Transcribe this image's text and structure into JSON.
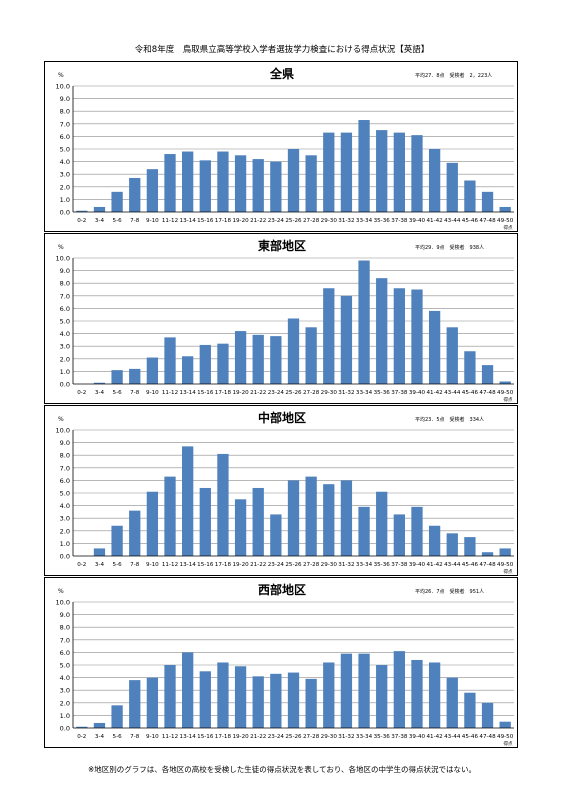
{
  "page_title": "令和8年度　鳥取県立高等学校入学者選抜学力検査における得点状況【英語】",
  "footnote": "※地区別のグラフは、各地区の高校を受検した生徒の得点状況を表しており、各地区の中学生の得点状況ではない。",
  "colors": {
    "bar": "#4F81BD",
    "grid": "#8c8c8c",
    "axis": "#000000"
  },
  "chart_data": [
    {
      "type": "bar",
      "title": "全県",
      "stats": "平均27．8点　受検者　2，223人",
      "ylabel": "%",
      "xlabel": "得点",
      "ylim": [
        0,
        10
      ],
      "yticks": [
        "0.0",
        "1.0",
        "2.0",
        "3.0",
        "4.0",
        "5.0",
        "6.0",
        "7.0",
        "8.0",
        "9.0",
        "10.0"
      ],
      "grid": true,
      "categories": [
        "0-2",
        "3-4",
        "5-6",
        "7-8",
        "9-10",
        "11-12",
        "13-14",
        "15-16",
        "17-18",
        "19-20",
        "21-22",
        "23-24",
        "25-26",
        "27-28",
        "29-30",
        "31-32",
        "33-34",
        "35-36",
        "37-38",
        "39-40",
        "41-42",
        "43-44",
        "45-46",
        "47-48",
        "49-50"
      ],
      "values": [
        0.1,
        0.4,
        1.6,
        2.7,
        3.4,
        4.6,
        4.8,
        4.1,
        4.8,
        4.5,
        4.2,
        4.0,
        5.0,
        4.5,
        6.3,
        6.3,
        7.3,
        6.5,
        6.3,
        6.1,
        5.0,
        3.9,
        2.5,
        1.6,
        0.4
      ]
    },
    {
      "type": "bar",
      "title": "東部地区",
      "stats": "平均29．9点　受検者　938人",
      "ylabel": "%",
      "xlabel": "得点",
      "ylim": [
        0,
        10
      ],
      "yticks": [
        "0.0",
        "1.0",
        "2.0",
        "3.0",
        "4.0",
        "5.0",
        "6.0",
        "7.0",
        "8.0",
        "9.0",
        "10.0"
      ],
      "grid": true,
      "categories": [
        "0-2",
        "3-4",
        "5-6",
        "7-8",
        "9-10",
        "11-12",
        "13-14",
        "15-16",
        "17-18",
        "19-20",
        "21-22",
        "23-24",
        "25-26",
        "27-28",
        "29-30",
        "31-32",
        "33-34",
        "35-36",
        "37-38",
        "39-40",
        "41-42",
        "43-44",
        "45-46",
        "47-48",
        "49-50"
      ],
      "values": [
        0.0,
        0.1,
        1.1,
        1.2,
        2.1,
        3.7,
        2.2,
        3.1,
        3.2,
        4.2,
        3.9,
        3.8,
        5.2,
        4.5,
        7.6,
        7.0,
        9.8,
        8.4,
        7.6,
        7.5,
        5.8,
        4.5,
        2.6,
        1.5,
        0.2
      ]
    },
    {
      "type": "bar",
      "title": "中部地区",
      "stats": "平均23．5点　受検者　334人",
      "ylabel": "%",
      "xlabel": "得点",
      "ylim": [
        0,
        10
      ],
      "yticks": [
        "0.0",
        "1.0",
        "2.0",
        "3.0",
        "4.0",
        "5.0",
        "6.0",
        "7.0",
        "8.0",
        "9.0",
        "10.0"
      ],
      "grid": true,
      "categories": [
        "0-2",
        "3-4",
        "5-6",
        "7-8",
        "9-10",
        "11-12",
        "13-14",
        "15-16",
        "17-18",
        "19-20",
        "21-22",
        "23-24",
        "25-26",
        "27-28",
        "29-30",
        "31-32",
        "33-34",
        "35-36",
        "37-38",
        "39-40",
        "41-42",
        "43-44",
        "45-46",
        "47-48",
        "49-50"
      ],
      "values": [
        0.0,
        0.6,
        2.4,
        3.6,
        5.1,
        6.3,
        8.7,
        5.4,
        8.1,
        4.5,
        5.4,
        3.3,
        6.0,
        6.3,
        5.7,
        6.0,
        3.9,
        5.1,
        3.3,
        3.9,
        2.4,
        1.8,
        1.5,
        0.3,
        0.6
      ]
    },
    {
      "type": "bar",
      "title": "西部地区",
      "stats": "平均26．7点　受検者　951人",
      "ylabel": "%",
      "xlabel": "得点",
      "ylim": [
        0,
        10
      ],
      "yticks": [
        "0.0",
        "1.0",
        "2.0",
        "3.0",
        "4.0",
        "5.0",
        "6.0",
        "7.0",
        "8.0",
        "9.0",
        "10.0"
      ],
      "grid": true,
      "categories": [
        "0-2",
        "3-4",
        "5-6",
        "7-8",
        "9-10",
        "11-12",
        "13-14",
        "15-16",
        "17-18",
        "19-20",
        "21-22",
        "23-24",
        "25-26",
        "27-28",
        "29-30",
        "31-32",
        "33-34",
        "35-36",
        "37-38",
        "39-40",
        "41-42",
        "43-44",
        "45-46",
        "47-48",
        "49-50"
      ],
      "values": [
        0.1,
        0.4,
        1.8,
        3.8,
        4.0,
        5.0,
        6.0,
        4.5,
        5.2,
        4.9,
        4.1,
        4.3,
        4.4,
        3.9,
        5.2,
        5.9,
        5.9,
        5.0,
        6.1,
        5.4,
        5.2,
        4.0,
        2.8,
        2.0,
        0.5
      ]
    }
  ]
}
